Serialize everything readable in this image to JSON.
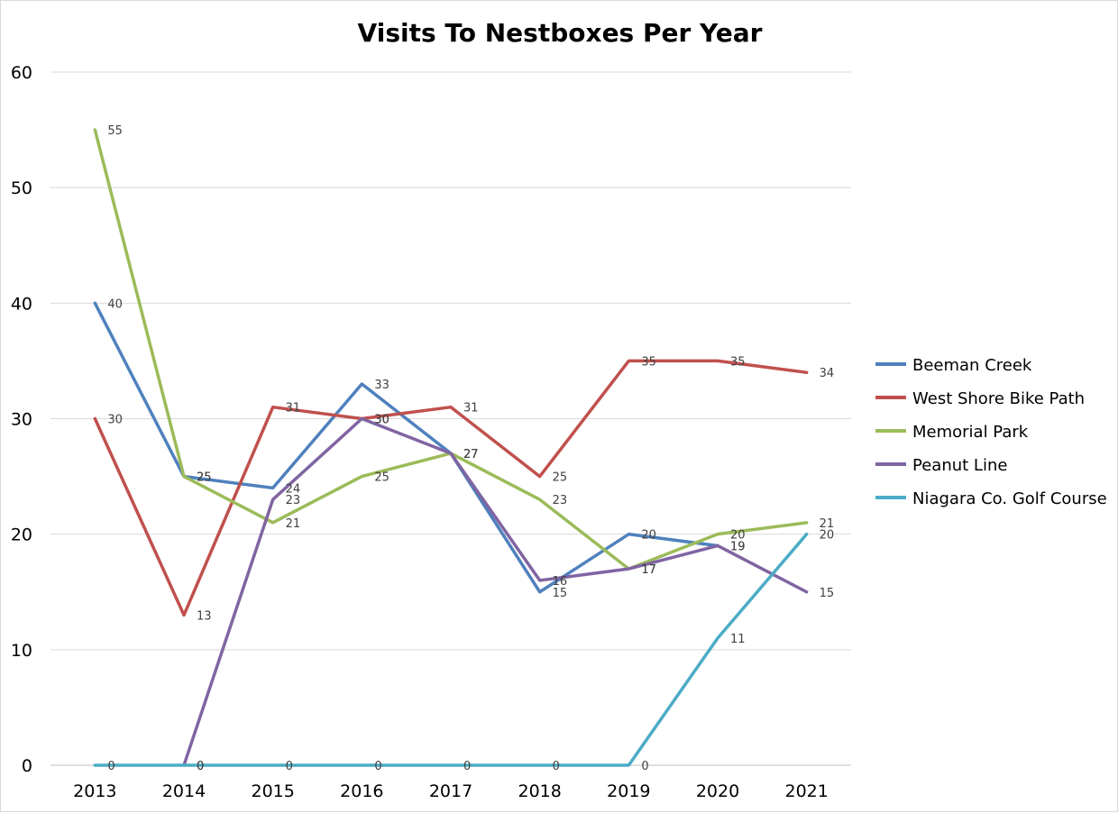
{
  "chart_data": {
    "type": "line",
    "title": "Visits To Nestboxes Per Year",
    "xlabel": "",
    "ylabel": "",
    "categories": [
      "2013",
      "2014",
      "2015",
      "2016",
      "2017",
      "2018",
      "2019",
      "2020",
      "2021"
    ],
    "ylim": [
      0,
      60
    ],
    "yticks": [
      "0",
      "10",
      "20",
      "30",
      "40",
      "50",
      "60"
    ],
    "grid": true,
    "legend_position": "right",
    "series": [
      {
        "name": "Beeman Creek",
        "color": "#4f81bd",
        "values": [
          40,
          25,
          24,
          33,
          27,
          15,
          20,
          19,
          null
        ]
      },
      {
        "name": "West Shore Bike Path",
        "color": "#c0504d",
        "values": [
          30,
          13,
          31,
          30,
          31,
          25,
          35,
          35,
          34
        ]
      },
      {
        "name": "Memorial Park",
        "color": "#9bbb59",
        "values": [
          55,
          25,
          21,
          25,
          27,
          23,
          17,
          20,
          21
        ]
      },
      {
        "name": "Peanut Line",
        "color": "#8064a2",
        "values": [
          null,
          0,
          23,
          30,
          27,
          16,
          17,
          19,
          15
        ]
      },
      {
        "name": "Niagara Co. Golf Course",
        "color": "#4bacc6",
        "values": [
          0,
          0,
          0,
          0,
          0,
          0,
          0,
          11,
          20
        ]
      }
    ]
  }
}
